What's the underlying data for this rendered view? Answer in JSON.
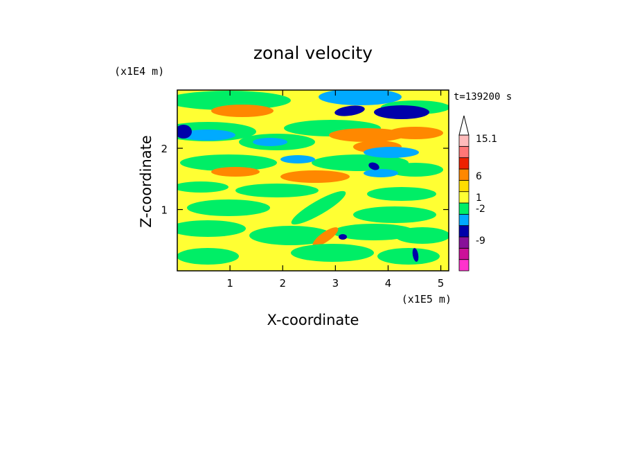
{
  "chart_data": {
    "type": "heatmap",
    "title": "zonal velocity",
    "xlabel": "X-coordinate",
    "ylabel": "Z-coordinate",
    "x_unit": "(x1E5 m)",
    "y_unit": "(x1E4 m)",
    "time_label": "t=139200 s",
    "xlim": [
      0,
      5.15
    ],
    "ylim": [
      0,
      2.95
    ],
    "x_ticks": [
      {
        "value": 1,
        "label": "1"
      },
      {
        "value": 2,
        "label": "2"
      },
      {
        "value": 3,
        "label": "3"
      },
      {
        "value": 4,
        "label": "4"
      },
      {
        "value": 5,
        "label": "5"
      }
    ],
    "y_ticks": [
      {
        "value": 1,
        "label": "1"
      },
      {
        "value": 2,
        "label": "2"
      }
    ],
    "colorbar": {
      "levels": [
        {
          "color": "#ff33cc"
        },
        {
          "color": "#cc1199"
        },
        {
          "color": "#881199"
        },
        {
          "color": "#0000aa"
        },
        {
          "color": "#00aaff"
        },
        {
          "color": "#00ee66"
        },
        {
          "color": "#ffff33"
        },
        {
          "color": "#ffdd00"
        },
        {
          "color": "#ff8800"
        },
        {
          "color": "#ee2200"
        },
        {
          "color": "#ff7777"
        },
        {
          "color": "#ffbbbb"
        }
      ],
      "tick_labels": [
        "15.1",
        "6",
        "1",
        "-2",
        "-9"
      ]
    },
    "grid": false,
    "legend": "colorbar-right"
  }
}
